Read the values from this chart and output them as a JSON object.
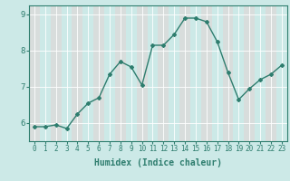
{
  "x": [
    0,
    1,
    2,
    3,
    4,
    5,
    6,
    7,
    8,
    9,
    10,
    11,
    12,
    13,
    14,
    15,
    16,
    17,
    18,
    19,
    20,
    21,
    22,
    23
  ],
  "y": [
    5.9,
    5.9,
    5.95,
    5.85,
    6.25,
    6.55,
    6.7,
    7.35,
    7.7,
    7.55,
    7.05,
    8.15,
    8.15,
    8.45,
    8.9,
    8.9,
    8.8,
    8.25,
    7.4,
    6.65,
    6.95,
    7.2,
    7.35,
    7.6
  ],
  "line_color": "#2e7d6e",
  "bg_color": "#cce9e7",
  "grid_color": "#ffffff",
  "xlabel": "Humidex (Indice chaleur)",
  "ylim": [
    5.5,
    9.25
  ],
  "xlim": [
    -0.5,
    23.5
  ],
  "yticks": [
    6,
    7,
    8,
    9
  ],
  "xticks": [
    0,
    1,
    2,
    3,
    4,
    5,
    6,
    7,
    8,
    9,
    10,
    11,
    12,
    13,
    14,
    15,
    16,
    17,
    18,
    19,
    20,
    21,
    22,
    23
  ],
  "marker": "D",
  "markersize": 2.0,
  "linewidth": 1.0,
  "tick_fontsize": 5.5,
  "xlabel_fontsize": 7.0
}
